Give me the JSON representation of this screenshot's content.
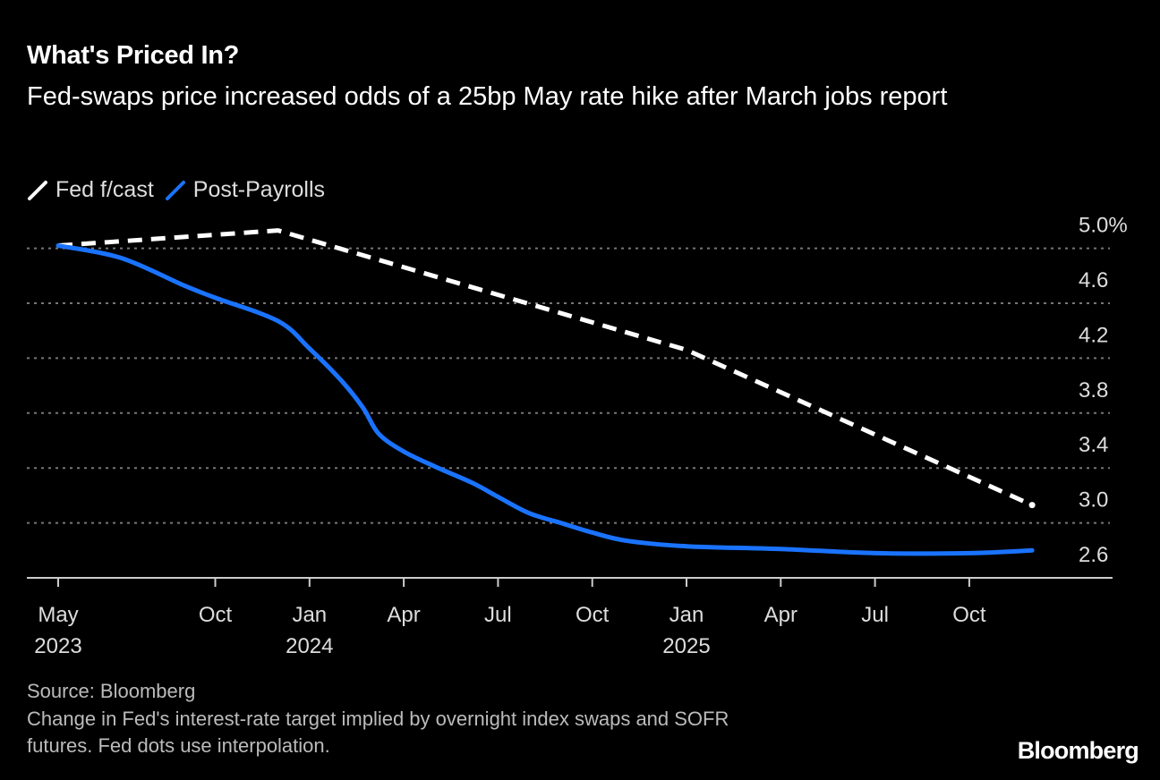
{
  "chart_data": {
    "type": "line",
    "title": "What's Priced In?",
    "subtitle": "Fed-swaps price increased odds of a 25bp May rate hike after March jobs report",
    "ylim": [
      2.6,
      5.1
    ],
    "yticks": [
      {
        "value": 5.0,
        "label": "5.0%"
      },
      {
        "value": 4.6,
        "label": "4.6"
      },
      {
        "value": 4.2,
        "label": "4.2"
      },
      {
        "value": 3.8,
        "label": "3.8"
      },
      {
        "value": 3.4,
        "label": "3.4"
      },
      {
        "value": 3.0,
        "label": "3.0"
      },
      {
        "value": 2.6,
        "label": "2.6"
      }
    ],
    "xlim": [
      "2023-04",
      "2026-03"
    ],
    "xticks": [
      {
        "date": "2023-05",
        "label": "May",
        "year": "2023"
      },
      {
        "date": "2023-10",
        "label": "Oct",
        "year": ""
      },
      {
        "date": "2024-01",
        "label": "Jan",
        "year": "2024"
      },
      {
        "date": "2024-04",
        "label": "Apr",
        "year": ""
      },
      {
        "date": "2024-07",
        "label": "Jul",
        "year": ""
      },
      {
        "date": "2024-10",
        "label": "Oct",
        "year": ""
      },
      {
        "date": "2025-01",
        "label": "Jan",
        "year": "2025"
      },
      {
        "date": "2025-04",
        "label": "Apr",
        "year": ""
      },
      {
        "date": "2025-07",
        "label": "Jul",
        "year": ""
      },
      {
        "date": "2025-10",
        "label": "Oct",
        "year": ""
      }
    ],
    "grid": "horizontal dotted",
    "legend_position": "top-left",
    "series": [
      {
        "name": "Fed f/cast",
        "color": "#ffffff",
        "style": "dashed",
        "points": [
          [
            "2023-05",
            5.02
          ],
          [
            "2023-12",
            5.13
          ],
          [
            "2025-01",
            4.26
          ],
          [
            "2025-12",
            3.13
          ]
        ]
      },
      {
        "name": "Post-Payrolls",
        "color": "#1a73ff",
        "style": "solid",
        "points": [
          [
            "2023-05",
            5.02
          ],
          [
            "2023-07",
            4.93
          ],
          [
            "2023-09",
            4.73
          ],
          [
            "2023-10",
            4.64
          ],
          [
            "2023-12",
            4.47
          ],
          [
            "2024-01",
            4.27
          ],
          [
            "2024-02",
            4.04
          ],
          [
            "2024-02.7",
            3.84
          ],
          [
            "2024-03.2",
            3.65
          ],
          [
            "2024-04",
            3.52
          ],
          [
            "2024-05",
            3.41
          ],
          [
            "2024-06.2",
            3.29
          ],
          [
            "2024-07",
            3.19
          ],
          [
            "2024-08",
            3.07
          ],
          [
            "2024-09",
            3.0
          ],
          [
            "2024-10",
            2.93
          ],
          [
            "2024-11.1",
            2.87
          ],
          [
            "2025-01",
            2.83
          ],
          [
            "2025-04",
            2.81
          ],
          [
            "2025-07",
            2.78
          ],
          [
            "2025-10",
            2.78
          ],
          [
            "2025-12",
            2.8
          ]
        ]
      }
    ]
  },
  "footer": {
    "source": "Source: Bloomberg",
    "note_line1": "Change in Fed's interest-rate target implied by overnight index swaps and SOFR",
    "note_line2": "futures. Fed dots use interpolation."
  },
  "logo": "Bloomberg"
}
